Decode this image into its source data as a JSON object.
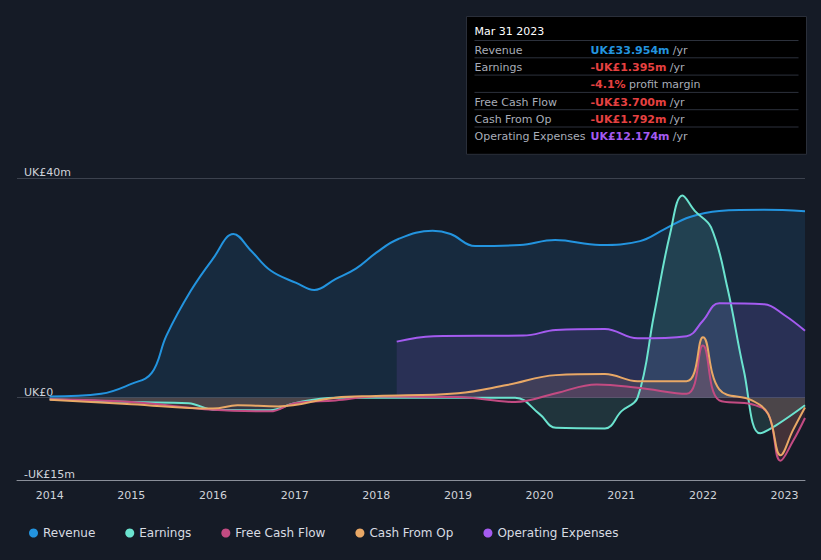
{
  "chart_data": {
    "type": "line",
    "xlim": [
      2013.6,
      2023.25
    ],
    "xticks": [
      2014,
      2015,
      2016,
      2017,
      2018,
      2019,
      2020,
      2021,
      2022,
      2023
    ],
    "ylim": [
      -15,
      40
    ],
    "yticks": [
      {
        "value": -15,
        "label": "-UK£15m"
      },
      {
        "value": 0,
        "label": "UK£0"
      },
      {
        "value": 40,
        "label": "UK£40m"
      }
    ],
    "grid": true,
    "legend": "bottom-left",
    "series": [
      {
        "name": "Revenue",
        "color": "#2394df",
        "x": [
          2014,
          2014.63,
          2015,
          2015.25,
          2015.43,
          2015.73,
          2016,
          2016.25,
          2016.47,
          2016.71,
          2017.02,
          2017.24,
          2017.5,
          2017.75,
          2018,
          2018.27,
          2018.69,
          2018.91,
          2019.21,
          2019.76,
          2020.19,
          2020.74,
          2021.23,
          2021.53,
          2021.84,
          2022.2,
          2022.75,
          2023.25
        ],
        "values": [
          0.2,
          0.7,
          2.5,
          4.5,
          11.3,
          19.5,
          25.3,
          29.8,
          26.7,
          23.1,
          20.9,
          19.6,
          21.6,
          23.5,
          26.4,
          28.9,
          30.4,
          29.8,
          27.6,
          27.8,
          28.7,
          27.8,
          28.5,
          30.7,
          32.9,
          34.0,
          34.2,
          33.954
        ]
      },
      {
        "name": "Earnings",
        "color": "#6be3cf",
        "x": [
          2014,
          2015,
          2015.7,
          2016,
          2016.7,
          2017,
          2017.5,
          2018,
          2019,
          2019.7,
          2020,
          2020.2,
          2020.8,
          2021,
          2021.2,
          2021.4,
          2021.6,
          2021.75,
          2021.9,
          2022.1,
          2022.3,
          2022.5,
          2022.7,
          2022.9,
          2023.25
        ],
        "values": [
          -0.3,
          -0.8,
          -1.0,
          -2.2,
          -2.3,
          -1.0,
          0,
          0,
          0,
          0,
          -3,
          -5.5,
          -5.6,
          -2.5,
          0,
          15,
          30,
          36.8,
          34,
          31,
          20,
          5,
          -6.5,
          -5,
          -1.395
        ]
      },
      {
        "name": "Free Cash Flow",
        "color": "#c34b82",
        "x": [
          2014,
          2015,
          2016,
          2016.7,
          2017,
          2017.5,
          2018,
          2019,
          2019.7,
          2020.2,
          2020.7,
          2021.2,
          2021.8,
          2022,
          2022.2,
          2022.6,
          2022.8,
          2022.95,
          2023.1,
          2023.25
        ],
        "values": [
          -0.3,
          -0.8,
          -2.2,
          -2.5,
          -1.0,
          -0.5,
          0.2,
          0.1,
          -0.8,
          0.8,
          2.4,
          1.8,
          0.7,
          9.5,
          -0.5,
          -1.2,
          -3,
          -11.5,
          -8,
          -3.7
        ]
      },
      {
        "name": "Cash From Op",
        "color": "#e9a866",
        "x": [
          2014,
          2015,
          2016,
          2016.3,
          2016.8,
          2017.5,
          2018,
          2019,
          2019.6,
          2020.2,
          2020.8,
          2021.2,
          2021.8,
          2022,
          2022.2,
          2022.6,
          2022.8,
          2022.95,
          2023.1,
          2023.25
        ],
        "values": [
          -0.4,
          -1.2,
          -2,
          -1.4,
          -1.6,
          0,
          0.3,
          0.8,
          2.3,
          4.1,
          4.3,
          3.0,
          3.0,
          11,
          1.5,
          -0.5,
          -3,
          -10.5,
          -6,
          -1.792
        ]
      },
      {
        "name": "Operating Expenses",
        "color": "#a45bf0",
        "x": [
          2018.25,
          2018.7,
          2019.8,
          2020.2,
          2020.8,
          2021.2,
          2021.8,
          2022,
          2022.2,
          2022.75,
          2023,
          2023.25
        ],
        "values": [
          10.2,
          11.2,
          11.3,
          12.3,
          12.5,
          10.8,
          11.2,
          14,
          17.2,
          17.0,
          15,
          12.174
        ]
      }
    ],
    "annotations": {
      "title": "Mar 31 2023",
      "rows": [
        {
          "label": "Revenue",
          "value": "UK£33.954m",
          "unit": "/yr",
          "color": "#2394df"
        },
        {
          "label": "Earnings",
          "value": "-UK£1.395m",
          "unit": "/yr",
          "color": "#e64141"
        },
        {
          "value": "-4.1%",
          "unit": "profit margin",
          "color": "#e64141"
        },
        {
          "label": "Free Cash Flow",
          "value": "-UK£3.700m",
          "unit": "/yr",
          "color": "#e64141"
        },
        {
          "label": "Cash From Op",
          "value": "-UK£1.792m",
          "unit": "/yr",
          "color": "#e64141"
        },
        {
          "label": "Operating Expenses",
          "value": "UK£12.174m",
          "unit": "/yr",
          "color": "#a45bf0"
        }
      ]
    }
  }
}
